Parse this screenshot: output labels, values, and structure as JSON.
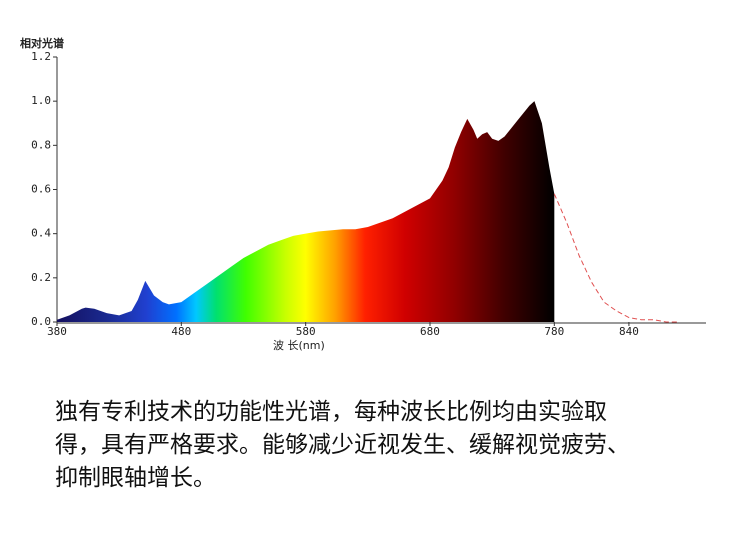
{
  "chart_data": {
    "type": "area",
    "y_label": "相对光谱",
    "x_label": "波 长(nm)",
    "xlim": [
      380,
      902
    ],
    "ylim": [
      0,
      1.2
    ],
    "xticks": [
      380,
      480,
      580,
      680,
      780,
      840
    ],
    "yticks": [
      {
        "value": 0,
        "label": "0.0"
      },
      {
        "value": 0.2,
        "label": "0.2"
      },
      {
        "value": 0.4,
        "label": "0.4"
      },
      {
        "value": 0.6,
        "label": "0.6"
      },
      {
        "value": 0.8,
        "label": "0.8"
      },
      {
        "value": 1.0,
        "label": "1.0"
      },
      {
        "value": 1.2,
        "label": "1.2"
      }
    ],
    "series": [
      {
        "fill": "spectrum",
        "x": [
          380,
          390,
          400,
          403,
          410,
          420,
          430,
          440,
          445,
          451,
          458,
          465,
          470,
          480,
          490,
          500,
          510,
          520,
          530,
          540,
          550,
          560,
          570,
          580,
          590,
          600,
          610,
          620,
          630,
          640,
          650,
          660,
          670,
          680,
          690,
          695,
          700,
          705,
          710,
          715,
          718,
          722,
          726,
          730,
          735,
          740,
          750,
          760,
          764,
          770,
          776,
          780
        ],
        "values": [
          0.01,
          0.03,
          0.06,
          0.065,
          0.06,
          0.04,
          0.03,
          0.05,
          0.1,
          0.186,
          0.12,
          0.09,
          0.08,
          0.09,
          0.13,
          0.17,
          0.21,
          0.25,
          0.29,
          0.32,
          0.35,
          0.37,
          0.39,
          0.4,
          0.41,
          0.415,
          0.42,
          0.42,
          0.43,
          0.45,
          0.47,
          0.5,
          0.53,
          0.56,
          0.64,
          0.7,
          0.79,
          0.86,
          0.92,
          0.87,
          0.83,
          0.85,
          0.86,
          0.83,
          0.82,
          0.84,
          0.91,
          0.98,
          1.0,
          0.9,
          0.7,
          0.58
        ]
      },
      {
        "color": "#e05050",
        "dashed": true,
        "x": [
          780,
          790,
          800,
          810,
          820,
          830,
          840,
          850,
          860,
          870,
          880
        ],
        "values": [
          0.58,
          0.45,
          0.3,
          0.18,
          0.09,
          0.05,
          0.02,
          0.01,
          0.01,
          0.0,
          0.0
        ]
      }
    ]
  },
  "caption": [
    "独有专利技术的功能性光谱，每种波长比例均由实验取",
    "得，具有严格要求。能够减少近视发生、缓解视觉疲劳、",
    "抑制眼轴增长。"
  ]
}
